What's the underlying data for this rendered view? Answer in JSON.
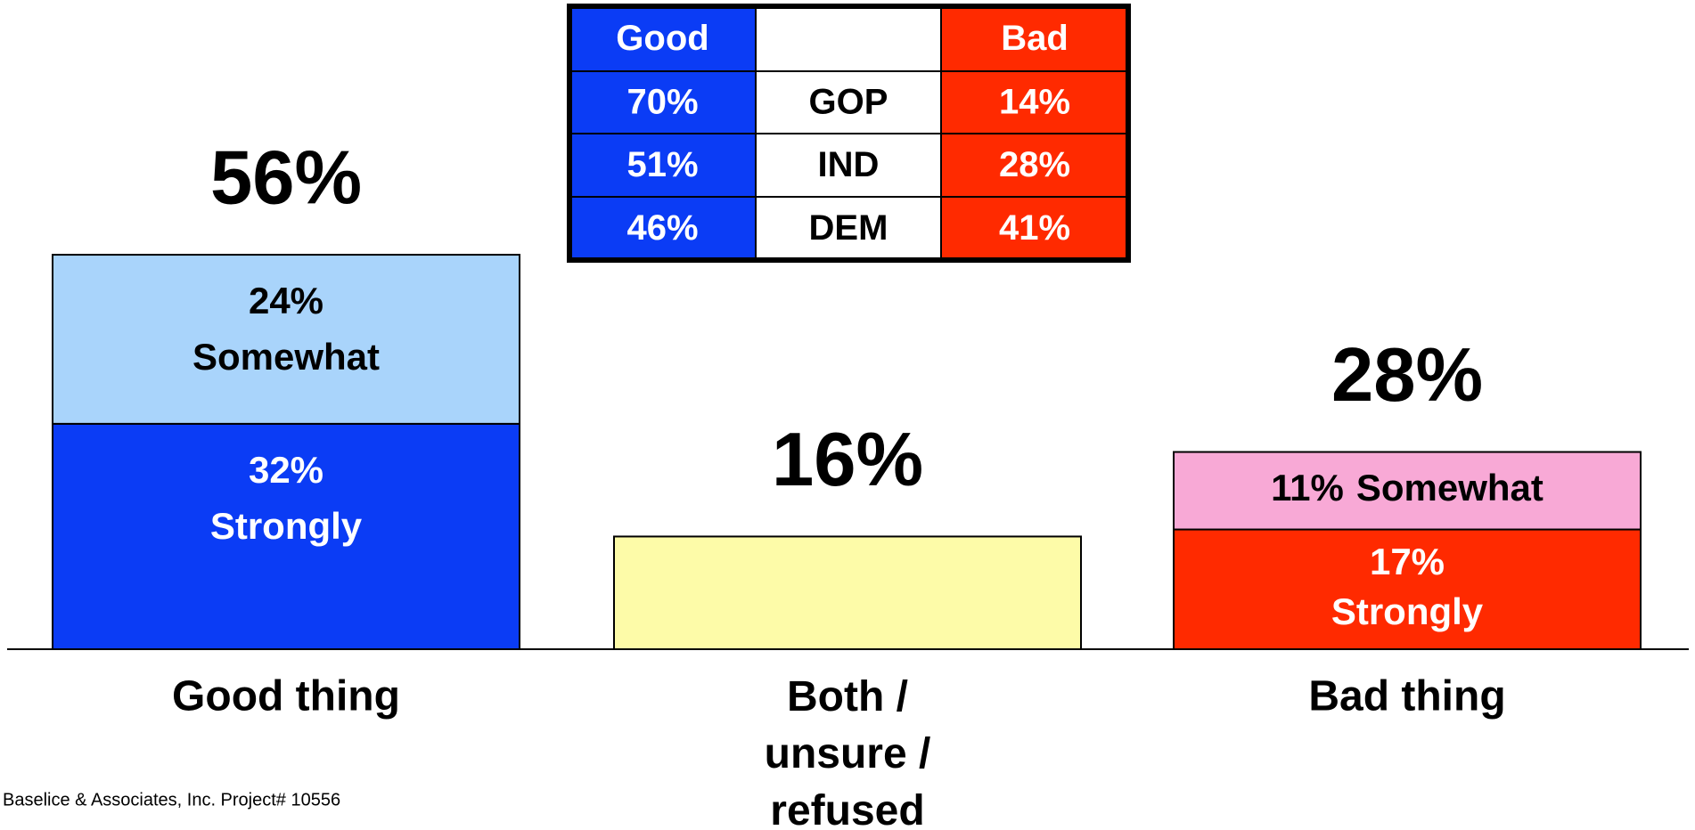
{
  "chart_data": {
    "type": "bar",
    "stacked": true,
    "categories": [
      "Good thing",
      "Both / unsure / refused",
      "Bad thing"
    ],
    "series": [
      {
        "name": "Strongly",
        "values": [
          32,
          null,
          17
        ],
        "value_labels": [
          "32%",
          null,
          "17%"
        ],
        "colors": [
          "#0b3cf5",
          null,
          "#ff2a00"
        ]
      },
      {
        "name": "Somewhat",
        "values": [
          24,
          null,
          11
        ],
        "value_labels": [
          "24%",
          null,
          "11%"
        ],
        "colors": [
          "#a9d4fb",
          null,
          "#f8a9d6"
        ]
      },
      {
        "values": [
          null,
          16,
          null
        ],
        "colors": [
          null,
          "#fdfba8",
          null
        ]
      }
    ],
    "totals": [
      56,
      16,
      28
    ],
    "total_labels": [
      "56%",
      "16%",
      "28%"
    ]
  },
  "table": {
    "good_header": "Good",
    "bad_header": "Bad",
    "good_color": "#0b3cf5",
    "bad_color": "#ff2a00",
    "rows": [
      [
        "70%",
        "GOP",
        "14%"
      ],
      [
        "51%",
        "IND",
        "28%"
      ],
      [
        "46%",
        "DEM",
        "41%"
      ]
    ]
  },
  "footer": "Baselice & Associates, Inc. Project# 10556"
}
